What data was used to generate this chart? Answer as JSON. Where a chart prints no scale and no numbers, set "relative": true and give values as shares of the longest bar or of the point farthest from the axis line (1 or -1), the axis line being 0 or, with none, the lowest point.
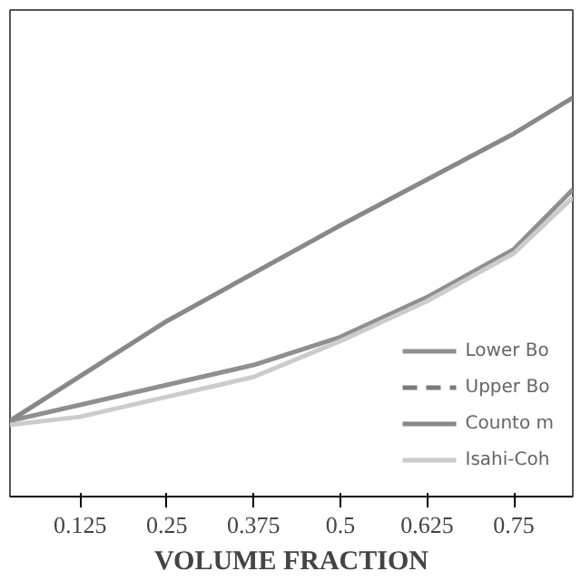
{
  "chart_data": {
    "type": "line",
    "xlabel": "VOLUME FRACTION",
    "relative": true,
    "xlim": [
      0.024,
      0.835
    ],
    "xticks": [
      0.125,
      0.25,
      0.375,
      0.5,
      0.625,
      0.75
    ],
    "series": [
      {
        "name": "Lower Bo",
        "color": "#8f8f8f",
        "line_style": "solid",
        "x": [
          0.024,
          0.125,
          0.25,
          0.375,
          0.5,
          0.625,
          0.75,
          0.835
        ],
        "values": [
          0.19,
          0.23,
          0.28,
          0.33,
          0.4,
          0.5,
          0.62,
          0.77
        ]
      },
      {
        "name": "Upper Bo",
        "color": "#7a7a7a",
        "line_style": "dashed"
      },
      {
        "name": "Counto m",
        "color": "#888888",
        "line_style": "solid",
        "x": [
          0.024,
          0.25,
          0.5,
          0.75,
          0.835
        ],
        "values": [
          0.19,
          0.44,
          0.68,
          0.91,
          1.0
        ]
      },
      {
        "name": "Isahi-Coh",
        "color": "#cccccc",
        "line_style": "solid",
        "x": [
          0.024,
          0.125,
          0.25,
          0.375,
          0.5,
          0.625,
          0.75,
          0.835
        ],
        "values": [
          0.18,
          0.2,
          0.25,
          0.3,
          0.39,
          0.49,
          0.61,
          0.75
        ]
      }
    ],
    "grid": false,
    "legend": "bottom right"
  }
}
